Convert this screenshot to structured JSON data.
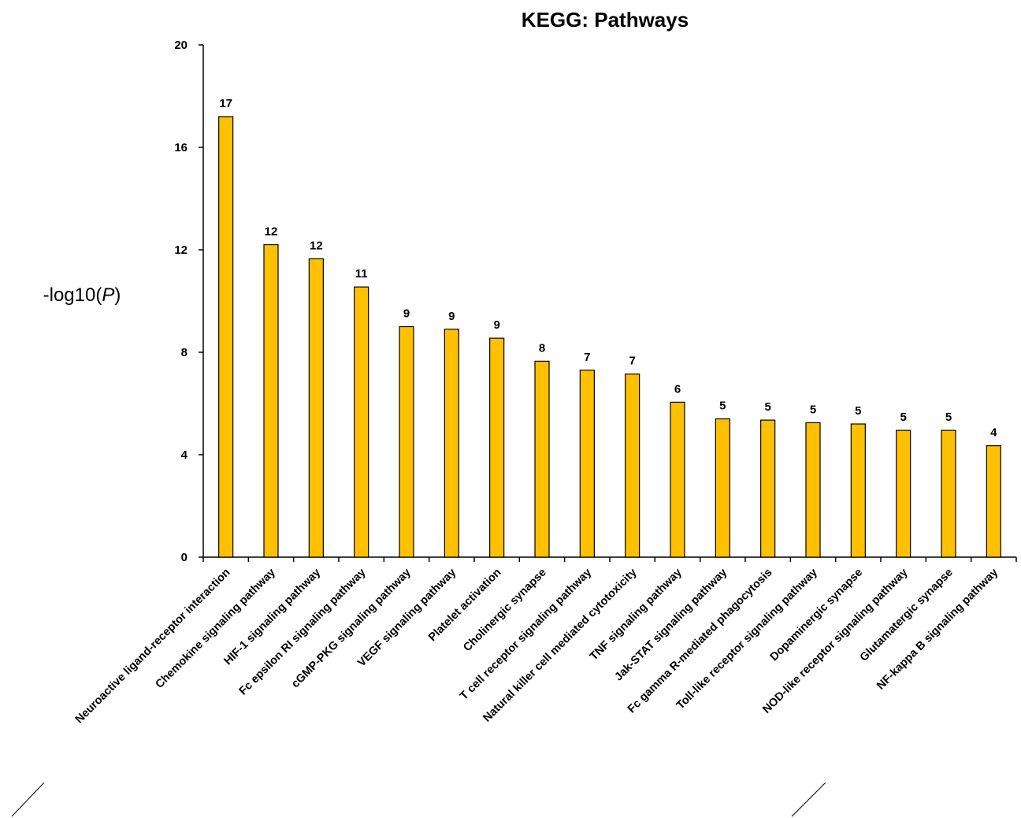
{
  "chart_data": {
    "type": "bar",
    "title": "KEGG: Pathways",
    "ylabel_prefix": "-log10(",
    "ylabel_italic": "P",
    "ylabel_suffix": ")",
    "ylim": [
      0,
      20
    ],
    "yticks": [
      0,
      4,
      8,
      12,
      16,
      20
    ],
    "grid": false,
    "bar_color": "#ffc000",
    "categories": [
      "Neuroactive ligand-receptor interaction",
      "Chemokine signaling pathway",
      "HIF-1 signaling pathway",
      "Fc epsilon RI signaling pathway",
      "cGMP-PKG signaling pathway",
      "VEGF signaling pathway",
      "Platelet activation",
      "Cholinergic synapse",
      "T cell receptor signaling pathway",
      "Natural killer cell mediated cytotoxicity",
      "TNF signaling pathway",
      "Jak-STAT signaling pathway",
      "Fc gamma R-mediated phagocytosis",
      "Toll-like receptor signaling pathway",
      "Dopaminergic synapse",
      "NOD-like receptor signaling pathway",
      "Glutamatergic synapse",
      "NF-kappa B signaling pathway"
    ],
    "values": [
      17.2,
      12.2,
      11.65,
      10.55,
      9.0,
      8.9,
      8.55,
      7.65,
      7.3,
      7.15,
      6.05,
      5.4,
      5.35,
      5.25,
      5.2,
      4.95,
      4.95,
      4.35
    ],
    "data_labels": [
      "17",
      "12",
      "12",
      "11",
      "9",
      "9",
      "9",
      "8",
      "7",
      "7",
      "6",
      "5",
      "5",
      "5",
      "5",
      "5",
      "5",
      "4"
    ]
  }
}
